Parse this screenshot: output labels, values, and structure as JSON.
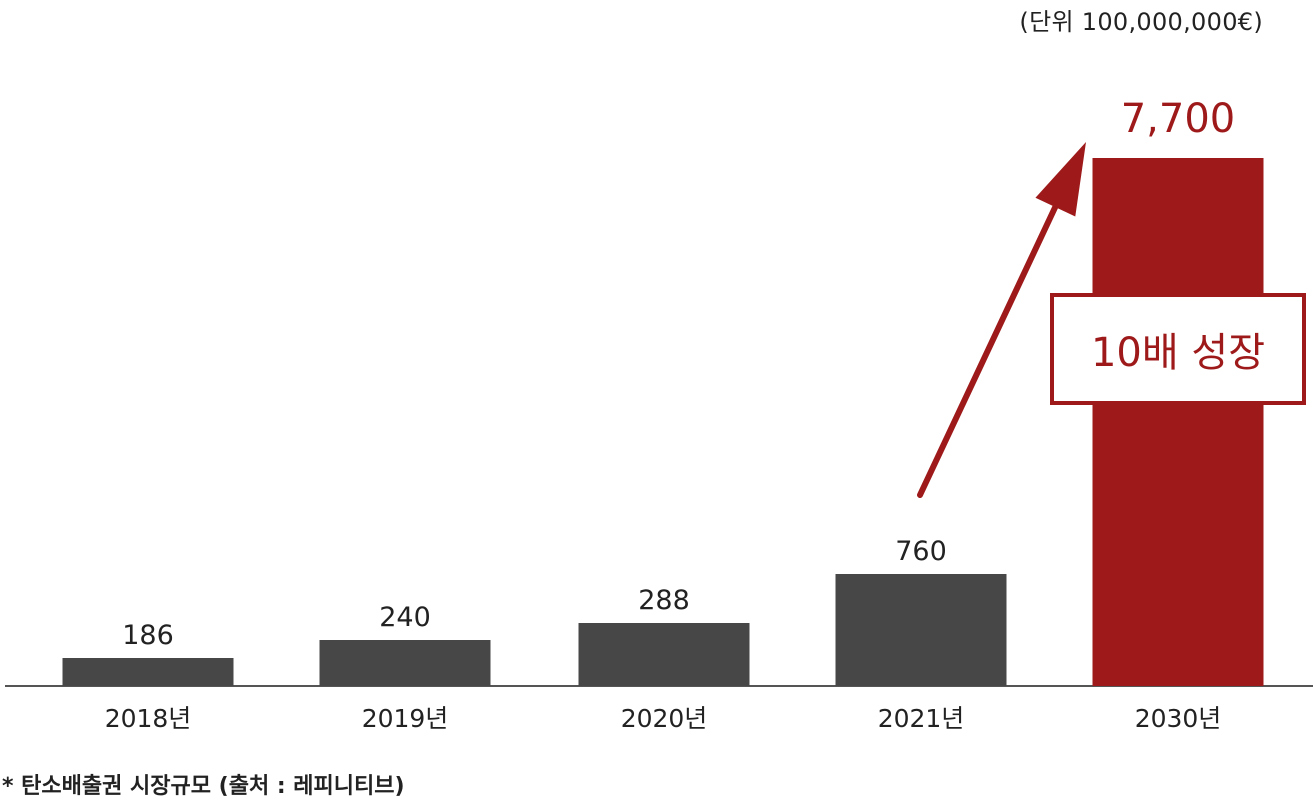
{
  "unit_label": "(단위 100,000,000€)",
  "footnote": "* 탄소배출권 시장규모 (출처 : 레피니티브)",
  "callout": "10배 성장",
  "colors": {
    "bar": "#474747",
    "highlight": "#9e1a1a",
    "text": "#222222",
    "axis": "#555555"
  },
  "chart_data": {
    "type": "bar",
    "categories": [
      "2018년",
      "2019년",
      "2020년",
      "2021년",
      "2030년"
    ],
    "values": [
      186,
      240,
      288,
      760,
      7700
    ],
    "data_labels": [
      "186",
      "240",
      "288",
      "760",
      "7,700"
    ],
    "highlight_index": 4,
    "title": "",
    "xlabel": "",
    "ylabel": "",
    "ylim": [
      0,
      7700
    ]
  }
}
